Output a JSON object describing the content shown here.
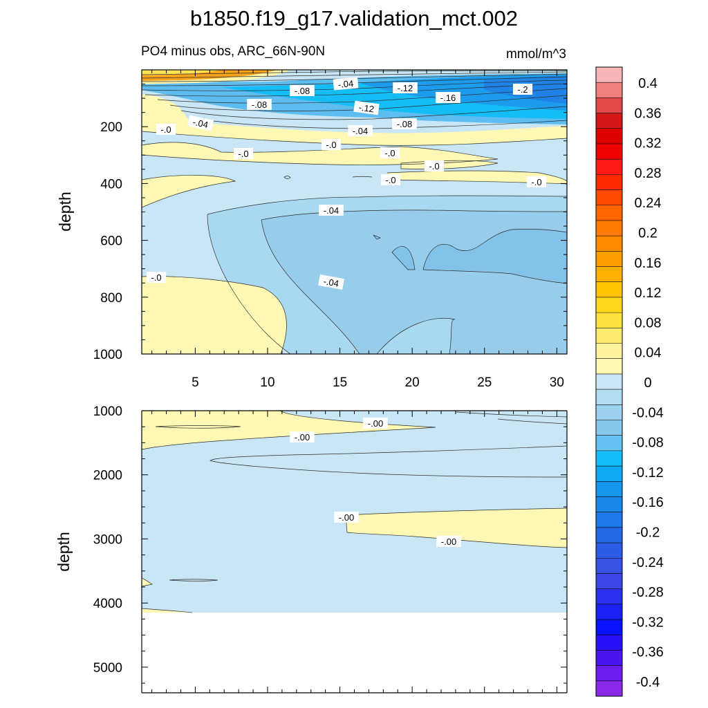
{
  "chart_data": {
    "type": "contour",
    "title": "b1850.f19_g17.validation_mct.002",
    "subtitle_left": "PO4 minus obs, ARC_66N-90N",
    "subtitle_right": "mmol/m^3",
    "colorbar": {
      "levels": [
        "0.4",
        "0.36",
        "0.32",
        "0.28",
        "0.24",
        "0.2",
        "0.16",
        "0.12",
        "0.08",
        "0.04",
        "0",
        "-0.04",
        "-0.08",
        "-0.12",
        "-0.16",
        "-0.2",
        "-0.24",
        "-0.28",
        "-0.32",
        "-0.36",
        "-0.4"
      ],
      "colors": [
        "#F7B6B8",
        "#F08080",
        "#E04A4A",
        "#D41818",
        "#E00000",
        "#F00000",
        "#FF1A1A",
        "#FF2A00",
        "#FF4A00",
        "#FF6600",
        "#FF7A00",
        "#FF8C00",
        "#FF9E00",
        "#FFB000",
        "#FFC400",
        "#FFD81A",
        "#FFE340",
        "#FFEA70",
        "#FFF2A0",
        "#FFF8B4",
        "#C8E6F5",
        "#B4DDF2",
        "#9ED2EE",
        "#86C8EC",
        "#66C2F2",
        "#14BDF5",
        "#10A8F0",
        "#1696EB",
        "#1A86E8",
        "#1F78E8",
        "#2568E6",
        "#2D5CE4",
        "#3A50E0",
        "#3C44E6",
        "#2A30EE",
        "#1A20F4",
        "#0A10F8",
        "#2A10F6",
        "#4A14F2",
        "#6A1EEE",
        "#8A2AE8"
      ]
    },
    "panels": [
      {
        "name": "upper",
        "ylabel": "depth",
        "xlim": [
          1.3,
          30.7
        ],
        "ylim": [
          1000,
          0
        ],
        "x_ticks": [
          "5",
          "10",
          "15",
          "20",
          "25",
          "30"
        ],
        "y_ticks": [
          "200",
          "400",
          "600",
          "800",
          "1000"
        ],
        "contour_labels": [
          "-.08",
          "-.04",
          "-.12",
          "-.2",
          "-.08",
          "-.12",
          "-.16",
          "-.04",
          "-.0",
          "-.04",
          "-.08",
          "-.0",
          "-.0",
          "-.0",
          "-.0",
          "-.0",
          "-.0",
          "-.04",
          "-.04",
          "-.0"
        ]
      },
      {
        "name": "lower",
        "ylabel": "depth",
        "xlim": [
          1.3,
          30.7
        ],
        "ylim": [
          5400,
          1000
        ],
        "y_ticks": [
          "1000",
          "2000",
          "3000",
          "4000",
          "5000"
        ],
        "contour_labels": [
          "-.00",
          "-.00",
          "-.00",
          "-.00"
        ]
      }
    ]
  }
}
